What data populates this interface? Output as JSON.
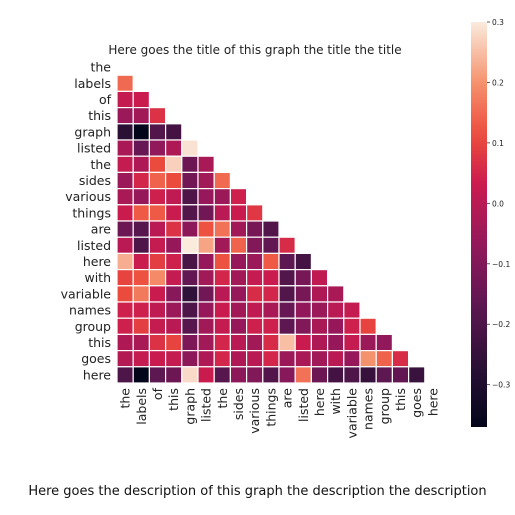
{
  "chart_data": {
    "type": "heatmap",
    "title": "Here goes the title of this graph the title the title",
    "description": "Here goes the description of this graph the description the description",
    "labels": [
      "the",
      "labels",
      "of",
      "this",
      "graph",
      "listed",
      "the",
      "sides",
      "various",
      "things",
      "are",
      "listed",
      "here",
      "with",
      "variable",
      "names",
      "group",
      "this",
      "goes",
      "here"
    ],
    "colorbar": {
      "min": -0.37,
      "max": 0.3,
      "ticks": [
        0.3,
        0.2,
        0.1,
        0.0,
        -0.1,
        -0.2,
        -0.3
      ],
      "tick_labels": [
        "0.3",
        "0.2",
        "0.1",
        "0.0",
        "−0.1",
        "−0.2",
        "−0.3"
      ]
    },
    "mask": "upper-triangle-including-diagonal",
    "values": [
      [],
      [
        0.15
      ],
      [
        0.02,
        0.03
      ],
      [
        -0.05,
        -0.04,
        0.07
      ],
      [
        -0.27,
        -0.37,
        -0.19,
        -0.22
      ],
      [
        -0.03,
        -0.15,
        -0.07,
        -0.02,
        0.29
      ],
      [
        0.02,
        -0.02,
        0.11,
        0.27,
        -0.14,
        -0.03
      ],
      [
        -0.05,
        0.05,
        0.14,
        0.11,
        -0.13,
        -0.04,
        0.15
      ],
      [
        -0.03,
        -0.06,
        0.04,
        0.01,
        -0.2,
        -0.06,
        -0.05,
        0.04
      ],
      [
        0.03,
        0.13,
        0.13,
        0.03,
        -0.19,
        -0.13,
        0.0,
        0.03,
        0.08
      ],
      [
        -0.14,
        -0.18,
        0.0,
        0.07,
        -0.08,
        0.12,
        0.16,
        -0.04,
        -0.12,
        -0.19
      ],
      [
        0.0,
        -0.2,
        0.02,
        -0.06,
        0.3,
        0.22,
        -0.04,
        0.14,
        -0.1,
        -0.16,
        0.06
      ],
      [
        0.23,
        0.03,
        0.09,
        0.04,
        -0.21,
        -0.06,
        0.12,
        -0.06,
        -0.05,
        0.13,
        -0.17,
        -0.22
      ],
      [
        0.1,
        0.12,
        0.19,
        0.02,
        -0.16,
        -0.04,
        0.05,
        -0.04,
        0.02,
        0.03,
        -0.19,
        -0.12,
        0.01
      ],
      [
        0.11,
        0.17,
        0.03,
        -0.09,
        -0.26,
        -0.13,
        0.0,
        -0.06,
        0.06,
        0.05,
        -0.19,
        -0.12,
        -0.02,
        -0.03
      ],
      [
        0.04,
        0.04,
        0.01,
        -0.05,
        -0.2,
        -0.06,
        0.03,
        -0.04,
        0.01,
        -0.03,
        -0.15,
        -0.07,
        -0.05,
        0.0,
        0.02
      ],
      [
        0.04,
        0.09,
        0.02,
        0.0,
        -0.18,
        -0.04,
        0.02,
        -0.06,
        0.04,
        0.04,
        -0.17,
        -0.1,
        -0.03,
        -0.06,
        0.04,
        0.1
      ],
      [
        -0.02,
        -0.03,
        0.07,
        0.1,
        -0.11,
        -0.04,
        0.05,
        0.0,
        -0.04,
        0.06,
        0.25,
        0.03,
        -0.02,
        -0.06,
        0.02,
        -0.05,
        -0.07
      ],
      [
        -0.01,
        0.02,
        0.03,
        0.02,
        -0.08,
        -0.02,
        0.05,
        -0.02,
        0.0,
        0.05,
        -0.05,
        -0.03,
        -0.04,
        0.0,
        -0.06,
        0.2,
        0.14,
        0.06
      ],
      [
        -0.2,
        -0.37,
        -0.17,
        -0.14,
        0.28,
        0.03,
        -0.18,
        -0.08,
        -0.1,
        -0.19,
        -0.09,
        0.16,
        -0.14,
        -0.22,
        -0.2,
        -0.25,
        -0.17,
        -0.16,
        -0.24
      ]
    ]
  }
}
